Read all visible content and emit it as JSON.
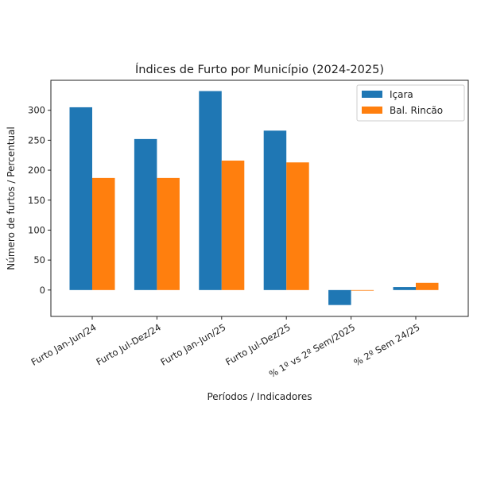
{
  "chart_data": {
    "type": "bar",
    "title": "Índices de Furto por Município (2024-2025)",
    "xlabel": "Períodos / Indicadores",
    "ylabel": "Número de furtos / Percentual",
    "categories": [
      "Furto Jan-Jun/24",
      "Furto Jul-Dez/24",
      "Furto Jan-Jun/25",
      "Furto Jul-Dez/25",
      "% 1º vs 2º Sem/2025",
      "% 2º Sem 24/25"
    ],
    "series": [
      {
        "name": "Içara",
        "color": "#1f77b4",
        "values": [
          305,
          252,
          332,
          266,
          -25,
          5
        ]
      },
      {
        "name": "Bal. Rincão",
        "color": "#ff7f0e",
        "values": [
          187,
          187,
          216,
          213,
          -1,
          12
        ]
      }
    ],
    "ylim": [
      -44,
      350
    ],
    "yticks": [
      0,
      50,
      100,
      150,
      200,
      250,
      300
    ],
    "legend": "top-right",
    "grid": false
  }
}
